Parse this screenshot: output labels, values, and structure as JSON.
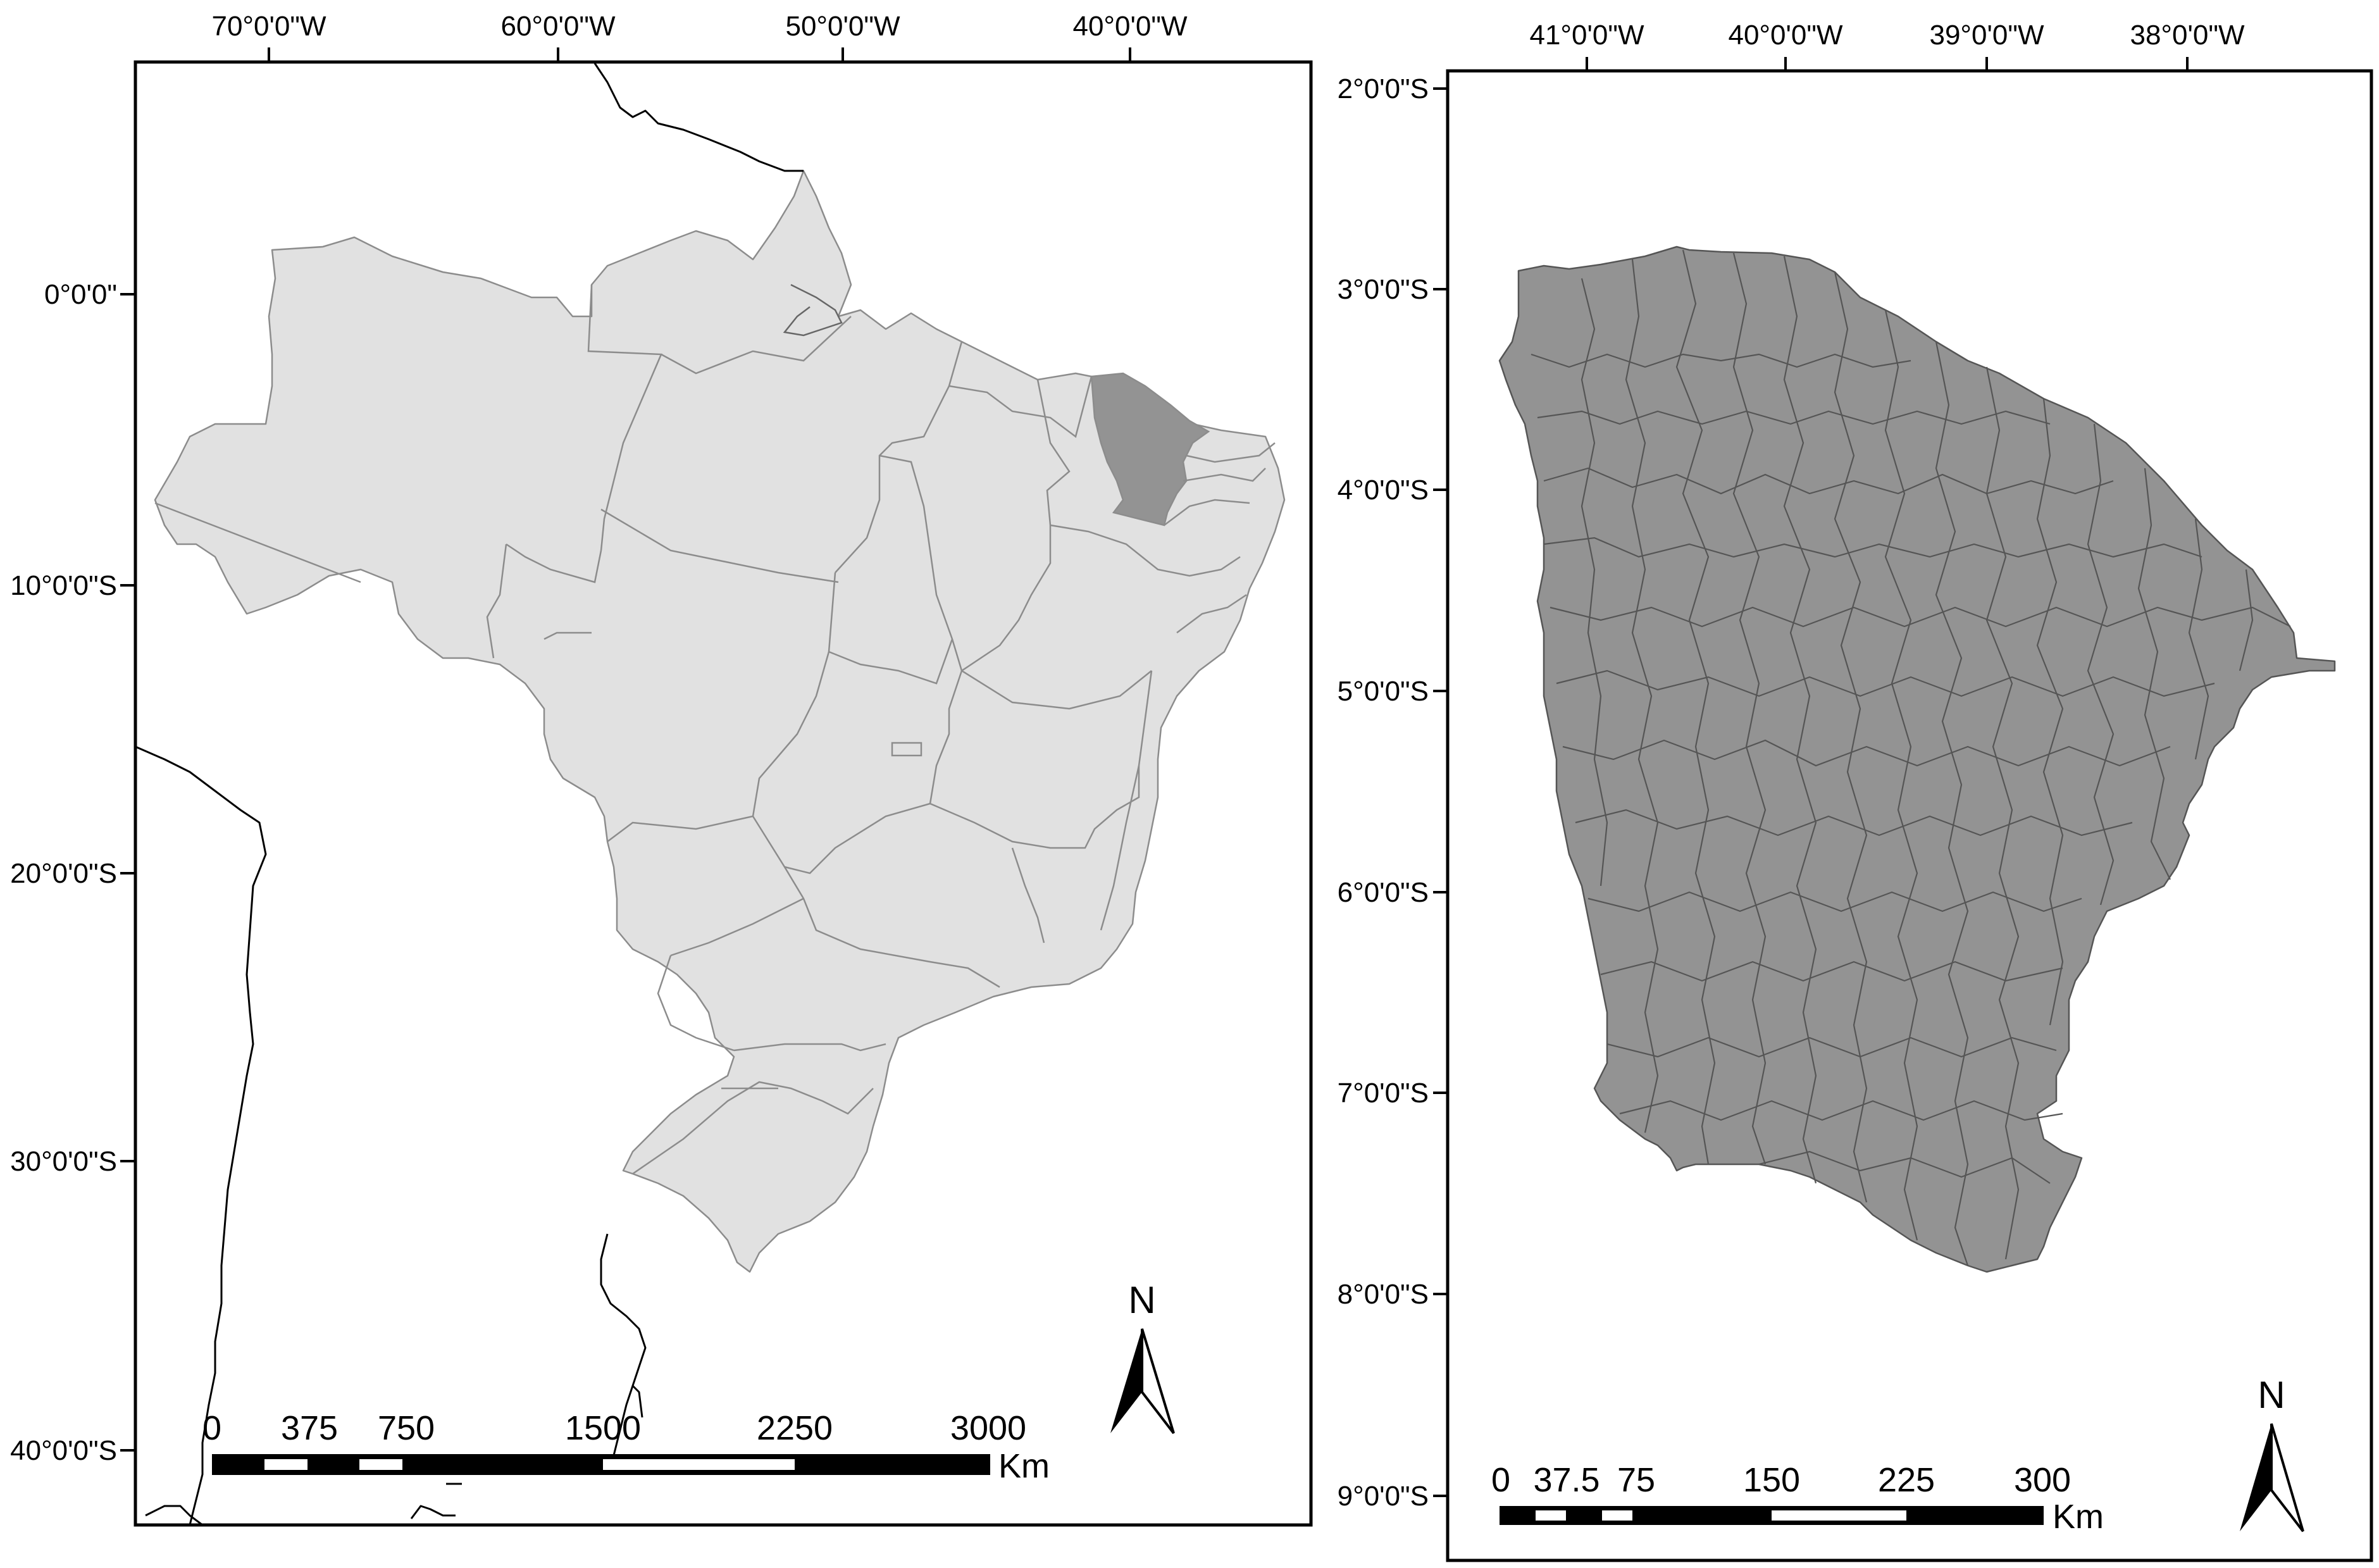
{
  "colors": {
    "background": "#ffffff",
    "land": "#e1e1e1",
    "highlight": "#939393",
    "state_border": "#8c8c8c",
    "frame": "#000000"
  },
  "left_map": {
    "top_labels": [
      "70°0'0\"W",
      "60°0'0\"W",
      "50°0'0\"W",
      "40°0'0\"W"
    ],
    "left_labels": [
      "0°0'0\"",
      "10°0'0\"S",
      "20°0'0\"S",
      "30°0'0\"S",
      "40°0'0\"S"
    ],
    "scale_labels": [
      "0",
      "375",
      "750",
      "1500",
      "2250",
      "3000"
    ],
    "scale_unit": "Km",
    "north": "N"
  },
  "right_map": {
    "top_labels": [
      "41°0'0\"W",
      "40°0'0\"W",
      "39°0'0\"W",
      "38°0'0\"W"
    ],
    "left_labels": [
      "2°0'0\"S",
      "3°0'0\"S",
      "4°0'0\"S",
      "5°0'0\"S",
      "6°0'0\"S",
      "7°0'0\"S",
      "8°0'0\"S",
      "9°0'0\"S"
    ],
    "scale_labels": [
      "0",
      "37.5",
      "75",
      "150",
      "225",
      "300"
    ],
    "scale_unit": "Km",
    "north": "N"
  }
}
